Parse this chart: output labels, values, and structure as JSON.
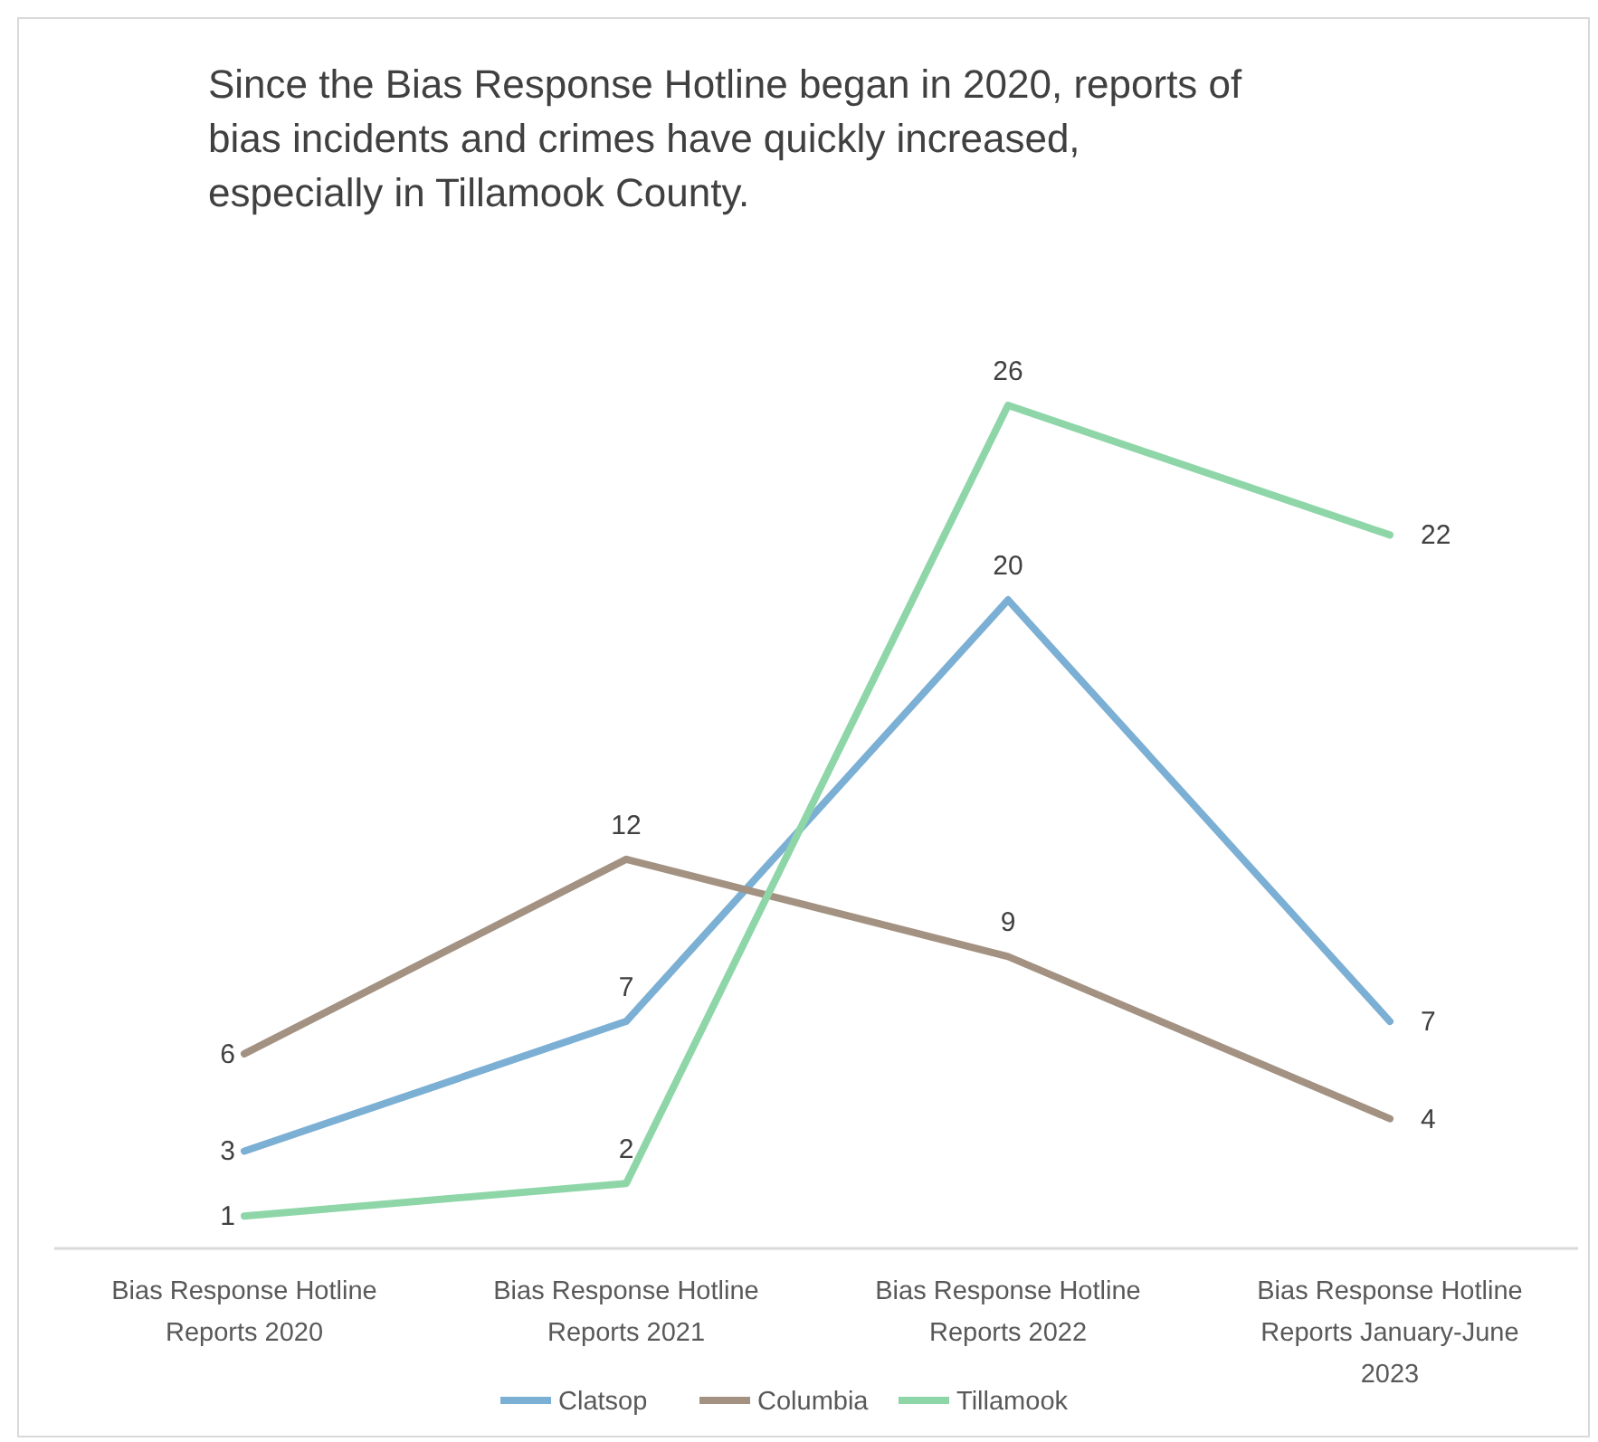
{
  "chart_data": {
    "type": "line",
    "title": "Since the Bias Response Hotline began in 2020, reports of bias incidents and crimes have quickly increased, especially in Tillamook County.",
    "categories": [
      "Bias Response Hotline Reports 2020",
      "Bias Response Hotline Reports 2021",
      "Bias Response Hotline Reports 2022",
      "Bias Response Hotline Reports January-June 2023"
    ],
    "series": [
      {
        "name": "Clatsop",
        "color": "#7bafd4",
        "values": [
          3,
          7,
          20,
          7
        ]
      },
      {
        "name": "Columbia",
        "color": "#a39282",
        "values": [
          6,
          12,
          9,
          4
        ]
      },
      {
        "name": "Tillamook",
        "color": "#8ed6a8",
        "values": [
          1,
          2,
          26,
          22
        ]
      }
    ],
    "data_labels": true,
    "legend": "bottom",
    "grid": false,
    "marker": "none",
    "line_style": "solid"
  }
}
